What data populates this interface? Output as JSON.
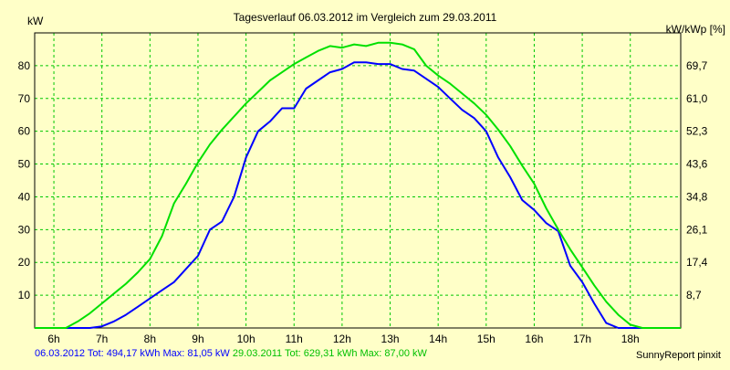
{
  "chart_data": {
    "type": "line",
    "title": "Tagesverlauf 06.03.2012 im Vergleich zum 29.03.2011",
    "ylabel_left": "kW",
    "ylabel_right": "kW/kWp [%]",
    "xlim": [
      5.6,
      19.05
    ],
    "ylim": [
      0,
      90
    ],
    "x_ticks": [
      6,
      7,
      8,
      9,
      10,
      11,
      12,
      13,
      14,
      15,
      16,
      17,
      18
    ],
    "x_tick_labels": [
      "6h",
      "7h",
      "8h",
      "9h",
      "10h",
      "11h",
      "12h",
      "13h",
      "14h",
      "15h",
      "16h",
      "17h",
      "18h"
    ],
    "y_ticks_left": [
      10,
      20,
      30,
      40,
      50,
      60,
      70,
      80
    ],
    "y_ticks_right": [
      "8,7",
      "17,4",
      "26,1",
      "34,8",
      "43,6",
      "52,3",
      "61,0",
      "69,7"
    ],
    "grid": true,
    "series": [
      {
        "name": "06.03.2012",
        "color": "#0000FF",
        "x": [
          5.6,
          6.75,
          7.0,
          7.25,
          7.5,
          7.75,
          8.0,
          8.25,
          8.5,
          8.75,
          9.0,
          9.25,
          9.5,
          9.75,
          10.0,
          10.25,
          10.5,
          10.75,
          11.0,
          11.25,
          11.5,
          11.75,
          12.0,
          12.25,
          12.5,
          12.75,
          13.0,
          13.25,
          13.5,
          13.75,
          14.0,
          14.25,
          14.5,
          14.75,
          15.0,
          15.25,
          15.5,
          15.75,
          16.0,
          16.25,
          16.5,
          16.75,
          17.0,
          17.25,
          17.5,
          17.75,
          18.0,
          19.05
        ],
        "values": [
          0,
          0,
          0.5,
          2,
          4,
          6.5,
          9,
          11.5,
          14,
          18,
          22,
          30,
          32.5,
          40,
          52,
          60,
          63,
          67,
          67,
          73,
          75.5,
          78,
          79,
          81,
          81,
          80.5,
          80.5,
          79,
          78.5,
          76,
          73.5,
          70,
          66.5,
          64,
          60,
          52,
          46,
          39,
          36,
          32,
          29.5,
          19,
          14,
          7.5,
          1.5,
          0,
          0,
          0
        ]
      },
      {
        "name": "29.03.2011",
        "color": "#00E000",
        "x": [
          5.6,
          6.25,
          6.5,
          6.75,
          7.0,
          7.25,
          7.5,
          7.75,
          8.0,
          8.25,
          8.5,
          8.75,
          9.0,
          9.25,
          9.5,
          9.75,
          10.0,
          10.25,
          10.5,
          10.75,
          11.0,
          11.25,
          11.5,
          11.75,
          12.0,
          12.25,
          12.5,
          12.75,
          13.0,
          13.25,
          13.5,
          13.75,
          14.0,
          14.25,
          14.5,
          14.75,
          15.0,
          15.25,
          15.5,
          15.75,
          16.0,
          16.25,
          16.5,
          16.75,
          17.0,
          17.25,
          17.5,
          17.75,
          18.0,
          18.25,
          18.5,
          19.05
        ],
        "values": [
          0,
          0,
          2,
          4.5,
          7.5,
          10.5,
          13.5,
          17,
          21,
          28,
          38,
          44,
          50.5,
          56,
          60.5,
          64.5,
          68.5,
          72,
          75.5,
          78,
          80.5,
          82.5,
          84.5,
          86,
          85.5,
          86.5,
          86,
          87,
          87,
          86.5,
          85,
          80,
          77,
          74.5,
          71.5,
          68.5,
          65,
          60.5,
          55.5,
          49.5,
          44,
          36.5,
          30,
          24,
          18.5,
          13,
          8,
          4,
          1,
          0,
          0,
          0
        ]
      }
    ]
  },
  "footer": {
    "s1_text": "06.03.2012 Tot: 494,17 kWh Max: 81,05 kW",
    "s2_text": "29.03.2011 Tot: 629,31 kWh Max: 87,00 kW",
    "brand": "SunnyReport pinxit"
  }
}
